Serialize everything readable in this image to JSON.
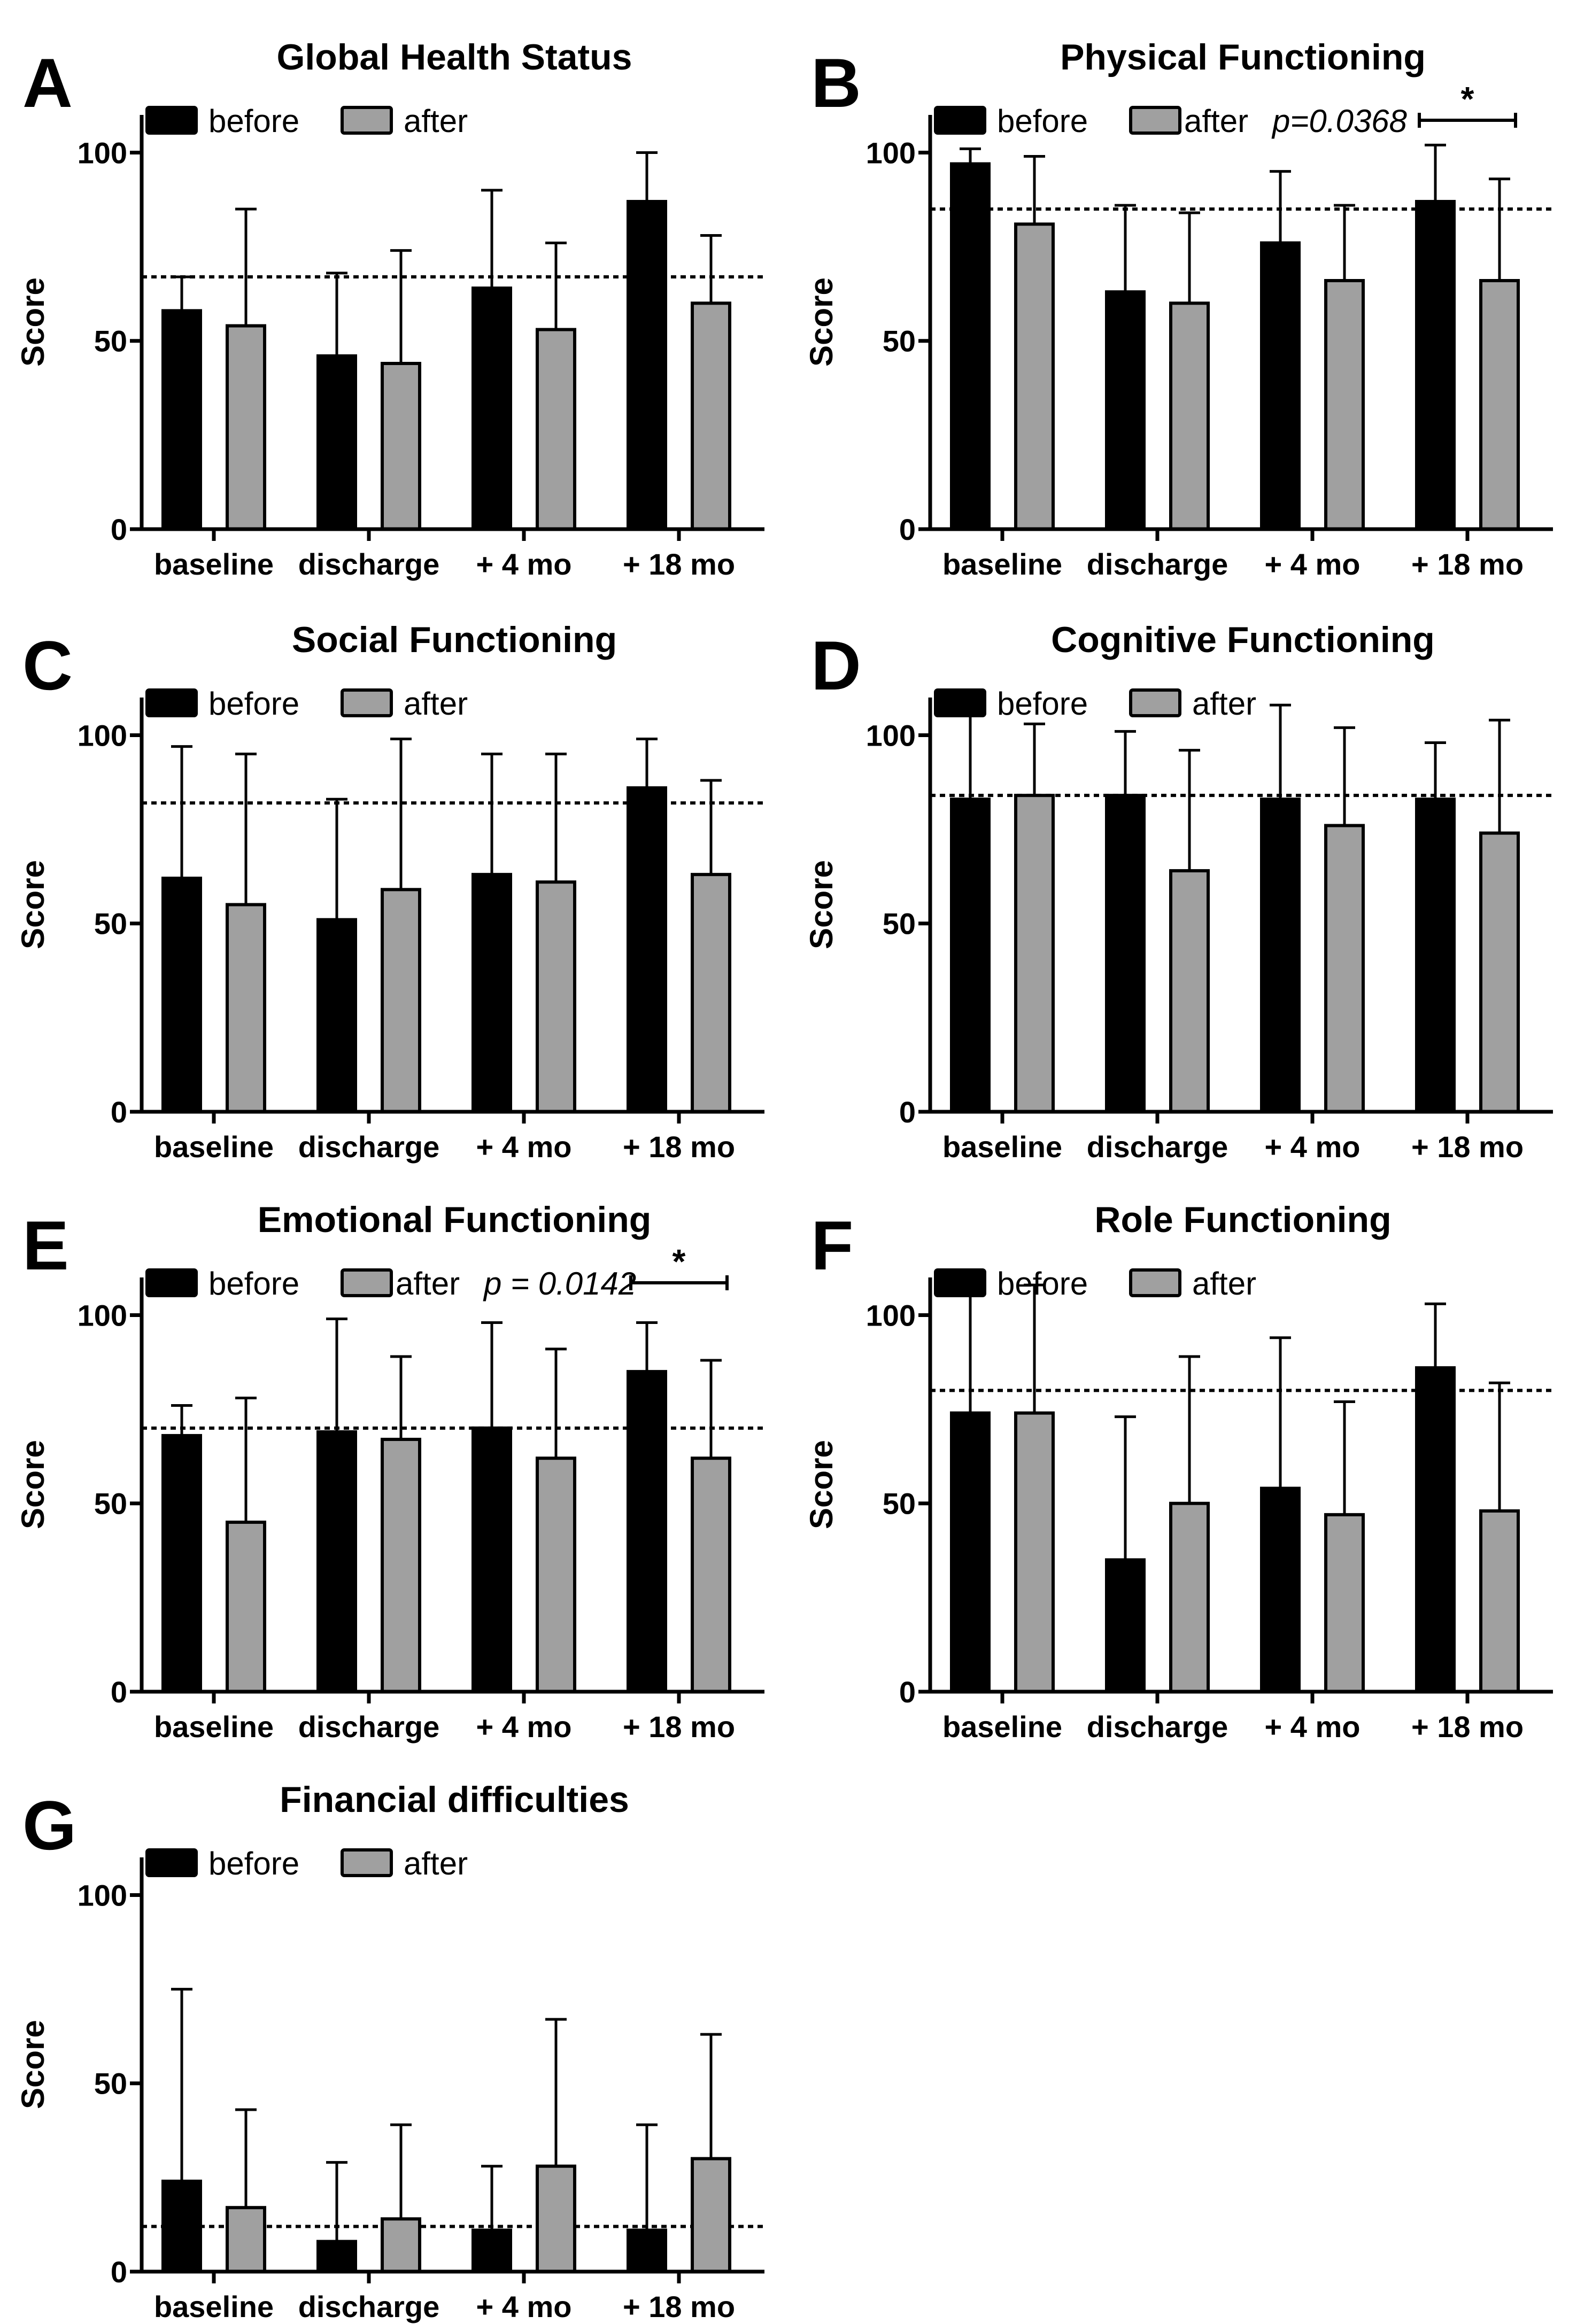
{
  "figure": {
    "reference_line_style": "dotted",
    "colors": {
      "before": "#000000",
      "after": "#a0a0a0",
      "axis": "#000000"
    }
  },
  "chart_data": [
    {
      "panel": "A",
      "type": "bar",
      "title": "Global Health Status",
      "ylabel": "Score",
      "xlabel": "",
      "ylim": [
        0,
        110
      ],
      "yticks": [
        0,
        50,
        100
      ],
      "categories": [
        "baseline",
        "discharge",
        "+ 4 mo",
        "+ 18 mo"
      ],
      "series": [
        {
          "name": "before",
          "values": [
            58,
            46,
            64,
            87
          ],
          "errors": [
            9,
            22,
            26,
            13
          ]
        },
        {
          "name": "after",
          "values": [
            54,
            44,
            53,
            60
          ],
          "errors": [
            31,
            30,
            23,
            18
          ]
        }
      ],
      "reference_line": 67,
      "significance": null
    },
    {
      "panel": "B",
      "type": "bar",
      "title": "Physical Functioning",
      "ylabel": "Score",
      "xlabel": "",
      "ylim": [
        0,
        110
      ],
      "yticks": [
        0,
        50,
        100
      ],
      "categories": [
        "baseline",
        "discharge",
        "+ 4 mo",
        "+ 18 mo"
      ],
      "series": [
        {
          "name": "before",
          "values": [
            97,
            63,
            76,
            87
          ],
          "errors": [
            4,
            23,
            19,
            15
          ]
        },
        {
          "name": "after",
          "values": [
            81,
            60,
            66,
            66
          ],
          "errors": [
            18,
            24,
            20,
            27
          ]
        }
      ],
      "reference_line": 85,
      "significance": {
        "label": "*",
        "pvalue": "p=0.0368",
        "category": "+ 18 mo"
      }
    },
    {
      "panel": "C",
      "type": "bar",
      "title": "Social Functioning",
      "ylabel": "Score",
      "xlabel": "",
      "ylim": [
        0,
        110
      ],
      "yticks": [
        0,
        50,
        100
      ],
      "categories": [
        "baseline",
        "discharge",
        "+ 4 mo",
        "+ 18 mo"
      ],
      "series": [
        {
          "name": "before",
          "values": [
            62,
            51,
            63,
            86
          ],
          "errors": [
            35,
            32,
            32,
            13
          ]
        },
        {
          "name": "after",
          "values": [
            55,
            59,
            61,
            63
          ],
          "errors": [
            40,
            40,
            34,
            25
          ]
        }
      ],
      "reference_line": 82,
      "significance": null
    },
    {
      "panel": "D",
      "type": "bar",
      "title": "Cognitive Functioning",
      "ylabel": "Score",
      "xlabel": "",
      "ylim": [
        0,
        110
      ],
      "yticks": [
        0,
        50,
        100
      ],
      "categories": [
        "baseline",
        "discharge",
        "+ 4 mo",
        "+ 18 mo"
      ],
      "series": [
        {
          "name": "before",
          "values": [
            83,
            84,
            83,
            83
          ],
          "errors": [
            24,
            17,
            25,
            15
          ]
        },
        {
          "name": "after",
          "values": [
            84,
            64,
            76,
            74
          ],
          "errors": [
            19,
            32,
            26,
            30
          ]
        }
      ],
      "reference_line": 84,
      "significance": null
    },
    {
      "panel": "E",
      "type": "bar",
      "title": "Emotional Functioning",
      "ylabel": "Score",
      "xlabel": "",
      "ylim": [
        0,
        110
      ],
      "yticks": [
        0,
        50,
        100
      ],
      "categories": [
        "baseline",
        "discharge",
        "+ 4 mo",
        "+ 18 mo"
      ],
      "series": [
        {
          "name": "before",
          "values": [
            68,
            69,
            70,
            85
          ],
          "errors": [
            8,
            30,
            28,
            13
          ]
        },
        {
          "name": "after",
          "values": [
            45,
            67,
            62,
            62
          ],
          "errors": [
            33,
            22,
            29,
            26
          ]
        }
      ],
      "reference_line": 70,
      "significance": {
        "label": "*",
        "pvalue": "p = 0.0142",
        "category": "+ 18 mo"
      }
    },
    {
      "panel": "F",
      "type": "bar",
      "title": "Role Functioning",
      "ylabel": "Score",
      "xlabel": "",
      "ylim": [
        0,
        110
      ],
      "yticks": [
        0,
        50,
        100
      ],
      "categories": [
        "baseline",
        "discharge",
        "+ 4 mo",
        "+ 18 mo"
      ],
      "series": [
        {
          "name": "before",
          "values": [
            74,
            35,
            54,
            86
          ],
          "errors": [
            33,
            38,
            40,
            17
          ]
        },
        {
          "name": "after",
          "values": [
            74,
            50,
            47,
            48
          ],
          "errors": [
            34,
            39,
            30,
            34
          ]
        }
      ],
      "reference_line": 80,
      "significance": null
    },
    {
      "panel": "G",
      "type": "bar",
      "title": "Financial difficulties",
      "ylabel": "Score",
      "xlabel": "",
      "ylim": [
        0,
        110
      ],
      "yticks": [
        0,
        50,
        100
      ],
      "categories": [
        "baseline",
        "discharge",
        "+ 4 mo",
        "+ 18 mo"
      ],
      "series": [
        {
          "name": "before",
          "values": [
            24,
            8,
            11,
            11
          ],
          "errors": [
            51,
            21,
            17,
            28
          ]
        },
        {
          "name": "after",
          "values": [
            17,
            14,
            28,
            30
          ],
          "errors": [
            26,
            25,
            39,
            33
          ]
        }
      ],
      "reference_line": 12,
      "significance": null
    }
  ]
}
